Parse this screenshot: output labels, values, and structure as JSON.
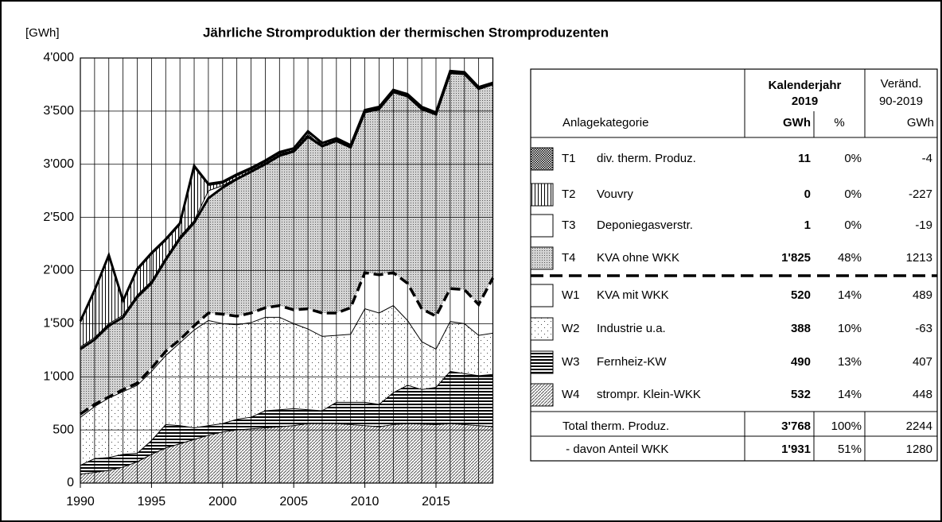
{
  "chart_data": {
    "type": "stacked-area",
    "title": "Jährliche Stromproduktion der thermischen Stromproduzenten",
    "y_unit": "[GWh]",
    "x": [
      1990,
      1991,
      1992,
      1993,
      1994,
      1995,
      1996,
      1997,
      1998,
      1999,
      2000,
      2001,
      2002,
      2003,
      2004,
      2005,
      2006,
      2007,
      2008,
      2009,
      2010,
      2011,
      2012,
      2013,
      2014,
      2015,
      2016,
      2017,
      2018,
      2019
    ],
    "xlim": [
      1990,
      2019
    ],
    "xticks": [
      1990,
      1995,
      2000,
      2005,
      2010,
      2015
    ],
    "ylim": [
      0,
      4000
    ],
    "yticks": [
      0,
      500,
      {
        "value": 1000,
        "label": "1'000"
      },
      {
        "value": 1500,
        "label": "1'500"
      },
      {
        "value": 2000,
        "label": "2'000"
      },
      {
        "value": 2500,
        "label": "2'500"
      },
      {
        "value": 3000,
        "label": "3'000"
      },
      {
        "value": 3500,
        "label": "3'500"
      },
      {
        "value": 4000,
        "label": "4'000"
      }
    ],
    "grid": true,
    "series": [
      {
        "code": "T1",
        "name": "div. therm. Produz.",
        "pattern": "checker",
        "boundary": "thick",
        "gwh": "11",
        "pct": "0%",
        "change": "-4",
        "values": [
          15,
          15,
          15,
          15,
          15,
          15,
          15,
          15,
          15,
          15,
          15,
          15,
          15,
          15,
          15,
          20,
          40,
          20,
          15,
          15,
          15,
          15,
          15,
          15,
          15,
          15,
          15,
          15,
          15,
          11
        ]
      },
      {
        "code": "T2",
        "name": "Vouvry",
        "pattern": "vertical",
        "boundary": "thin",
        "gwh": "0",
        "pct": "0%",
        "change": "-227",
        "values": [
          227,
          430,
          630,
          120,
          230,
          250,
          160,
          110,
          500,
          50,
          20,
          20,
          10,
          10,
          10,
          0,
          0,
          0,
          0,
          0,
          0,
          0,
          0,
          0,
          0,
          0,
          0,
          0,
          0,
          0
        ]
      },
      {
        "code": "T3",
        "name": "Deponiegasverstr.",
        "pattern": "white",
        "boundary": "thin",
        "gwh": "1",
        "pct": "0%",
        "change": "-19",
        "values": [
          20,
          20,
          20,
          20,
          20,
          20,
          20,
          20,
          20,
          70,
          20,
          10,
          10,
          10,
          10,
          10,
          10,
          10,
          10,
          5,
          5,
          5,
          5,
          5,
          5,
          3,
          3,
          2,
          1,
          1
        ]
      },
      {
        "code": "T4",
        "name": "KVA ohne WKK",
        "pattern": "dense-dots",
        "boundary": "thick",
        "gwh": "1'825",
        "pct": "48%",
        "change": "1213",
        "values": [
          612,
          610,
          670,
          680,
          810,
          800,
          860,
          950,
          970,
          1080,
          1190,
          1290,
          1330,
          1350,
          1410,
          1490,
          1620,
          1570,
          1620,
          1510,
          1510,
          1560,
          1700,
          1760,
          1880,
          1900,
          2030,
          2030,
          2030,
          1825
        ]
      },
      {
        "code": "W1",
        "name": "KVA mit WKK",
        "pattern": "white",
        "boundary": "dashed",
        "gwh": "520",
        "pct": "14%",
        "change": "489",
        "values": [
          31,
          20,
          10,
          20,
          20,
          30,
          40,
          30,
          40,
          70,
          90,
          80,
          90,
          90,
          110,
          130,
          190,
          220,
          210,
          250,
          340,
          360,
          310,
          350,
          310,
          310,
          310,
          320,
          290,
          520
        ]
      },
      {
        "code": "W2",
        "name": "Industrie u.a.",
        "pattern": "dots",
        "boundary": "thin",
        "gwh": "388",
        "pct": "10%",
        "change": "-63",
        "values": [
          451,
          490,
          560,
          590,
          640,
          650,
          650,
          780,
          920,
          990,
          940,
          890,
          890,
          880,
          870,
          800,
          760,
          700,
          630,
          640,
          880,
          860,
          820,
          610,
          450,
          360,
          470,
          470,
          380,
          388
        ]
      },
      {
        "code": "W3",
        "name": "Fernheiz-KW",
        "pattern": "horizontal",
        "boundary": "thin",
        "gwh": "490",
        "pct": "13%",
        "change": "407",
        "values": [
          83,
          130,
          120,
          120,
          80,
          130,
          220,
          170,
          110,
          90,
          80,
          100,
          110,
          160,
          160,
          160,
          130,
          120,
          200,
          210,
          220,
          210,
          300,
          360,
          325,
          350,
          490,
          480,
          470,
          490
        ]
      },
      {
        "code": "W4",
        "name": "strompr. Klein-WKK",
        "pattern": "diagonal",
        "boundary": "thin",
        "gwh": "532",
        "pct": "14%",
        "change": "448",
        "values": [
          84,
          100,
          120,
          150,
          200,
          270,
          330,
          370,
          410,
          450,
          480,
          500,
          510,
          520,
          530,
          540,
          560,
          560,
          560,
          550,
          540,
          530,
          550,
          560,
          555,
          550,
          560,
          550,
          540,
          532
        ]
      }
    ],
    "table": {
      "header": {
        "group": "Kalenderjahr",
        "year": "2019",
        "change": "Veränd.",
        "period": "90-2019",
        "category": "Anlagekategorie",
        "gwh": "GWh",
        "pct": "%",
        "change_unit": "GWh"
      },
      "totals": [
        {
          "name": "Total therm. Produz.",
          "gwh": "3'768",
          "pct": "100%",
          "change": "2244"
        },
        {
          "name": " - davon Anteil WKK",
          "gwh": "1'931",
          "pct": "51%",
          "change": "1280"
        }
      ]
    }
  }
}
